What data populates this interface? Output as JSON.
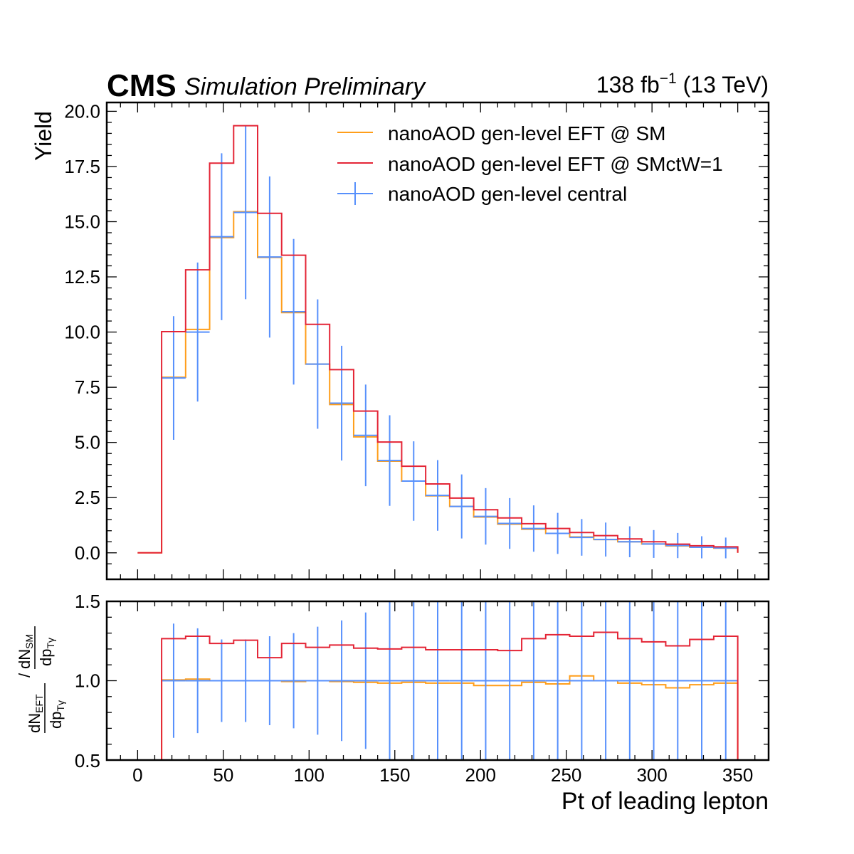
{
  "header": {
    "experiment": "CMS",
    "status": "Simulation Preliminary",
    "lumi_value": "138 fb",
    "lumi_exp": "−1",
    "energy": " (13 TeV)"
  },
  "legend": {
    "eft_sm": "nanoAOD gen-level EFT @ SM",
    "eft_ctw": "nanoAOD gen-level EFT @ SMctW=1",
    "central": "nanoAOD gen-level central"
  },
  "colors": {
    "eft_sm": "#ff9e1a",
    "eft_ctw": "#e42536",
    "central": "#5790fc"
  },
  "axes": {
    "xlabel": "Pt of leading lepton",
    "ylabel_top": "Yield",
    "ylabel_bottom": {
      "num_base": "dN",
      "num_sub": "EFT",
      "num2_base": "dN",
      "num2_sub": "SM",
      "den_base": "dp",
      "den_sub": "Tγ",
      "den2_base": "dp",
      "den2_sub": "Tγ"
    },
    "xticks": [
      0,
      50,
      100,
      150,
      200,
      250,
      300,
      350
    ],
    "yticks_top": [
      "0.0",
      "2.5",
      "5.0",
      "7.5",
      "10.0",
      "12.5",
      "15.0",
      "17.5",
      "20.0"
    ],
    "yticks_bottom": [
      "0.5",
      "1.0",
      "1.5"
    ]
  },
  "chart_data": [
    {
      "type": "line",
      "panel": "main",
      "xlabel": "Pt of leading lepton",
      "ylabel": "Yield",
      "xlim": [
        -18,
        368
      ],
      "ylim": [
        -1.2,
        20.4
      ],
      "bin_edges": [
        0,
        14,
        28,
        42,
        56,
        70,
        84,
        98,
        112,
        126,
        140,
        154,
        168,
        182,
        196,
        210,
        224,
        238,
        252,
        266,
        280,
        294,
        308,
        322,
        336,
        350
      ],
      "series": [
        {
          "name": "nanoAOD gen-level EFT @ SM",
          "style": "step",
          "values": [
            0.0,
            7.95,
            10.12,
            14.28,
            15.45,
            13.38,
            10.88,
            8.55,
            6.72,
            5.25,
            4.15,
            3.25,
            2.58,
            2.1,
            1.62,
            1.3,
            1.07,
            0.88,
            0.72,
            0.6,
            0.5,
            0.4,
            0.31,
            0.25,
            0.21
          ]
        },
        {
          "name": "nanoAOD gen-level EFT @ SMctW=1",
          "style": "step",
          "values": [
            0.0,
            10.02,
            12.82,
            17.65,
            19.35,
            15.38,
            13.48,
            10.35,
            8.3,
            6.42,
            5.02,
            3.92,
            3.12,
            2.48,
            1.95,
            1.58,
            1.32,
            1.1,
            0.92,
            0.78,
            0.63,
            0.5,
            0.39,
            0.32,
            0.27
          ]
        },
        {
          "name": "nanoAOD gen-level central",
          "style": "errorbar",
          "x": [
            21,
            35,
            49,
            63,
            77,
            91,
            105,
            119,
            133,
            147,
            161,
            175,
            189,
            203,
            217,
            231,
            245,
            259,
            273,
            287,
            301,
            315,
            329,
            343
          ],
          "y": [
            7.92,
            10.0,
            14.32,
            15.42,
            13.4,
            10.92,
            8.55,
            6.78,
            5.32,
            4.18,
            3.25,
            2.6,
            2.1,
            1.65,
            1.33,
            1.1,
            0.88,
            0.7,
            0.6,
            0.5,
            0.4,
            0.33,
            0.25,
            0.22
          ],
          "yerr": [
            2.8,
            3.15,
            3.78,
            3.93,
            3.65,
            3.3,
            2.93,
            2.6,
            2.3,
            2.05,
            1.8,
            1.6,
            1.45,
            1.28,
            1.15,
            1.05,
            0.93,
            0.83,
            0.77,
            0.7,
            0.63,
            0.57,
            0.5,
            0.47
          ]
        }
      ]
    },
    {
      "type": "line",
      "panel": "ratio",
      "xlabel": "Pt of leading lepton",
      "ylim": [
        0.5,
        1.5
      ],
      "bin_edges": [
        0,
        14,
        28,
        42,
        56,
        70,
        84,
        98,
        112,
        126,
        140,
        154,
        168,
        182,
        196,
        210,
        224,
        238,
        252,
        266,
        280,
        294,
        308,
        322,
        336,
        350
      ],
      "series": [
        {
          "name": "nanoAOD gen-level EFT @ SM",
          "style": "step",
          "values": [
            null,
            1.005,
            1.01,
            1.0,
            1.0,
            1.0,
            0.995,
            1.0,
            0.995,
            0.99,
            0.985,
            0.99,
            0.985,
            0.985,
            0.97,
            0.97,
            0.99,
            0.98,
            1.03,
            1.0,
            0.985,
            0.975,
            0.955,
            0.975,
            0.985
          ]
        },
        {
          "name": "nanoAOD gen-level EFT @ SMctW=1",
          "style": "step",
          "values": [
            null,
            1.265,
            1.28,
            1.235,
            1.255,
            1.145,
            1.235,
            1.21,
            1.225,
            1.205,
            1.2,
            1.21,
            1.195,
            1.195,
            1.195,
            1.19,
            1.265,
            1.29,
            1.28,
            1.305,
            1.265,
            1.245,
            1.22,
            1.26,
            1.28
          ]
        },
        {
          "name": "nanoAOD gen-level central",
          "style": "errorbar",
          "x": [
            21,
            35,
            49,
            63,
            77,
            91,
            105,
            119,
            133,
            147,
            161,
            175,
            189,
            203,
            217,
            231,
            245,
            259,
            273,
            287,
            301,
            315,
            329,
            343
          ],
          "y": [
            1,
            1,
            1,
            1,
            1,
            1,
            1,
            1,
            1,
            1,
            1,
            1,
            1,
            1,
            1,
            1,
            1,
            1,
            1,
            1,
            1,
            1,
            1,
            1
          ],
          "yerr": [
            0.36,
            0.33,
            0.26,
            0.26,
            0.28,
            0.3,
            0.34,
            0.38,
            0.43,
            0.5,
            0.55,
            0.6,
            0.7,
            0.77,
            0.87,
            0.95,
            1.05,
            1.2,
            1.3,
            1.4,
            1.6,
            1.8,
            2.0,
            2.1
          ]
        }
      ]
    }
  ]
}
